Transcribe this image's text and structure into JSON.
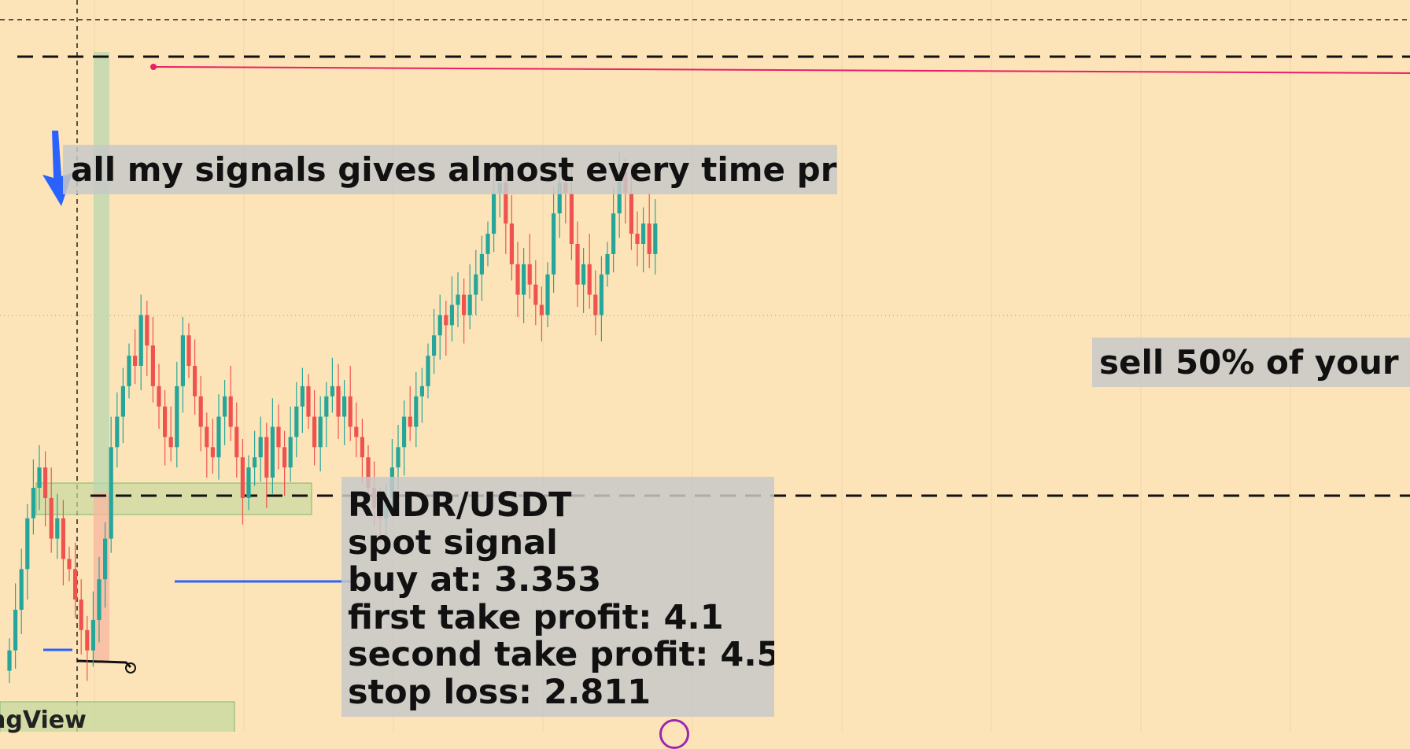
{
  "colors": {
    "background": "#fde4b8",
    "bull": "#26a69a",
    "bear": "#ef5350",
    "resistance_line": "#e91e63",
    "support_line": "#2962ff",
    "zone_fill": "#c8d9a0",
    "arrow": "#2962ff",
    "note_background": "#c8c8c8"
  },
  "annotations": {
    "headline": "all my signals gives almost every time profit",
    "right_note": "sell 50% of your to",
    "signal_lines": [
      "RNDR/USDT",
      "spot signal",
      "buy at: 3.353",
      "first take profit: 4.1",
      "second take profit: 4.58",
      "stop loss: 2.811"
    ]
  },
  "watermark": "ngView",
  "icons": {
    "arrow": "arrow-down-icon",
    "bottom": "circle-icon"
  },
  "chart_data": {
    "type": "candlestick",
    "grid": true,
    "axes_shown": false,
    "series": [
      {
        "name": "",
        "close": [
          2.3,
          2.5,
          2.7,
          2.95,
          3.1,
          3.2,
          3.05,
          2.85,
          2.95,
          2.75,
          2.7,
          2.55,
          2.4,
          2.3,
          2.45,
          2.65,
          2.85,
          3.3,
          3.45,
          3.6,
          3.75,
          3.7,
          3.95,
          3.8,
          3.6,
          3.5,
          3.35,
          3.3,
          3.6,
          3.85,
          3.7,
          3.55,
          3.4,
          3.3,
          3.25,
          3.45,
          3.55,
          3.4,
          3.25,
          3.05,
          3.2,
          3.25,
          3.35,
          3.15,
          3.4,
          3.3,
          3.2,
          3.35,
          3.5,
          3.6,
          3.45,
          3.3,
          3.45,
          3.55,
          3.6,
          3.45,
          3.55,
          3.4,
          3.35,
          3.25,
          3.1,
          3.0,
          2.95,
          3.05,
          3.2,
          3.3,
          3.45,
          3.4,
          3.55,
          3.6,
          3.75,
          3.85,
          3.95,
          3.9,
          4.0,
          4.05,
          3.95,
          4.05,
          4.15,
          4.25,
          4.35,
          4.55,
          4.6,
          4.4,
          4.2,
          4.05,
          4.2,
          4.1,
          4.0,
          3.95,
          4.15,
          4.45,
          4.6,
          4.55,
          4.3,
          4.1,
          4.2,
          4.05,
          3.95,
          4.15,
          4.25,
          4.45,
          4.65,
          4.55,
          4.35,
          4.3,
          4.4,
          4.25,
          4.4
        ]
      }
    ],
    "levels": [
      {
        "name": "first take profit",
        "value": 4.1
      },
      {
        "name": "second take profit",
        "value": 4.58
      },
      {
        "name": "buy",
        "value": 3.353
      },
      {
        "name": "stop loss",
        "value": 2.811
      }
    ],
    "ylim": [
      1.9,
      5.5
    ]
  }
}
